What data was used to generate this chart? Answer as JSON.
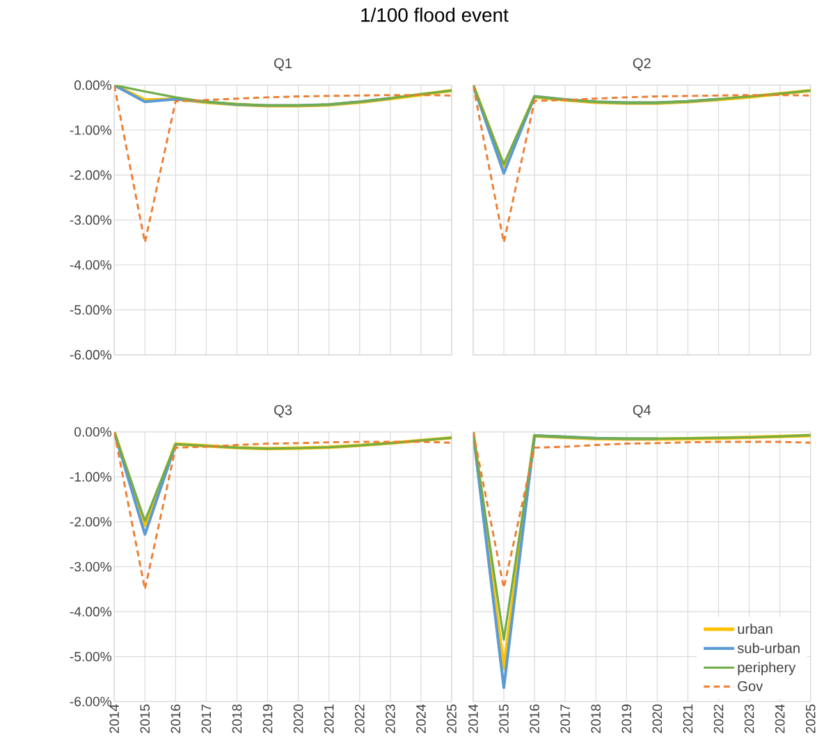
{
  "chart_data": [
    {
      "type": "line",
      "title": "Q1",
      "annotations": [
        "1/100 flood event"
      ],
      "categories": [
        "2014",
        "2015",
        "2016",
        "2017",
        "2018",
        "2019",
        "2020",
        "2021",
        "2022",
        "2023",
        "2024",
        "2025"
      ],
      "ylim": [
        -6,
        0
      ],
      "yticks": [
        {
          "value": 0,
          "label": "0.00%"
        },
        {
          "value": -1,
          "label": "-1.00%"
        },
        {
          "value": -2,
          "label": "-2.00%"
        },
        {
          "value": -3,
          "label": "-3.00%"
        },
        {
          "value": -4,
          "label": "-4.00%"
        },
        {
          "value": -5,
          "label": "-5.00%"
        },
        {
          "value": -6,
          "label": "-6.00%"
        }
      ],
      "grid": true,
      "tick_labels": "y",
      "series": [
        {
          "color": "#ffc000",
          "values": [
            0,
            -0.33,
            -0.31,
            -0.38,
            -0.43,
            -0.46,
            -0.46,
            -0.44,
            -0.38,
            -0.3,
            -0.21,
            -0.12
          ]
        },
        {
          "color": "#5b9bd5",
          "values": [
            0,
            -0.37,
            -0.31,
            -0.37,
            -0.43,
            -0.45,
            -0.45,
            -0.43,
            -0.37,
            -0.29,
            null,
            null
          ]
        },
        {
          "color": "#70ad47",
          "values": [
            0,
            -0.14,
            -0.27,
            -0.37,
            -0.42,
            -0.45,
            -0.45,
            -0.43,
            -0.37,
            -0.29,
            -0.2,
            -0.12
          ]
        },
        {
          "color": "#ed7d31",
          "line_style": "dashed",
          "values": [
            0,
            -3.5,
            -0.36,
            -0.33,
            -0.3,
            -0.27,
            -0.25,
            -0.24,
            -0.23,
            -0.22,
            -0.22,
            -0.23
          ]
        }
      ]
    },
    {
      "type": "line",
      "title": "Q2",
      "categories": [
        "2014",
        "2015",
        "2016",
        "2017",
        "2018",
        "2019",
        "2020",
        "2021",
        "2022",
        "2023",
        "2024",
        "2025"
      ],
      "ylim": [
        -6,
        0
      ],
      "yticks": [
        0,
        -1,
        -2,
        -3,
        -4,
        -5,
        -6
      ],
      "grid": true,
      "tick_labels": false,
      "series": [
        {
          "color": "#ffc000",
          "values": [
            0,
            -1.8,
            -0.26,
            -0.33,
            -0.38,
            -0.4,
            -0.4,
            -0.37,
            -0.32,
            -0.26,
            -0.19,
            -0.12
          ]
        },
        {
          "color": "#5b9bd5",
          "values": [
            0,
            -1.96,
            -0.25,
            -0.32,
            -0.37,
            -0.39,
            -0.39,
            -0.36,
            -0.31,
            null,
            null,
            null
          ]
        },
        {
          "color": "#70ad47",
          "values": [
            0,
            -1.76,
            -0.25,
            -0.32,
            -0.37,
            -0.39,
            -0.39,
            -0.36,
            -0.31,
            -0.25,
            -0.19,
            -0.12
          ]
        },
        {
          "color": "#ed7d31",
          "line_style": "dashed",
          "values": [
            0,
            -3.5,
            -0.35,
            -0.33,
            -0.3,
            -0.27,
            -0.25,
            -0.24,
            -0.23,
            -0.22,
            -0.22,
            -0.23
          ]
        }
      ]
    },
    {
      "type": "line",
      "title": "Q3",
      "categories": [
        "2014",
        "2015",
        "2016",
        "2017",
        "2018",
        "2019",
        "2020",
        "2021",
        "2022",
        "2023",
        "2024",
        "2025"
      ],
      "ylim": [
        -6,
        0
      ],
      "yticks": [
        {
          "value": 0,
          "label": "0.00%"
        },
        {
          "value": -1,
          "label": "-1.00%"
        },
        {
          "value": -2,
          "label": "-2.00%"
        },
        {
          "value": -3,
          "label": "-3.00%"
        },
        {
          "value": -4,
          "label": "-4.00%"
        },
        {
          "value": -5,
          "label": "-5.00%"
        },
        {
          "value": -6,
          "label": "-6.00%"
        }
      ],
      "grid": true,
      "series": [
        {
          "color": "#ffc000",
          "values": [
            0,
            -2.08,
            -0.27,
            -0.31,
            -0.35,
            -0.37,
            -0.36,
            -0.34,
            -0.3,
            -0.25,
            -0.19,
            -0.13
          ]
        },
        {
          "color": "#5b9bd5",
          "values": [
            0,
            -2.28,
            -0.28,
            null,
            null,
            null,
            null,
            null,
            null,
            null,
            null,
            null
          ]
        },
        {
          "color": "#70ad47",
          "values": [
            0,
            -1.98,
            -0.27,
            -0.31,
            -0.35,
            -0.37,
            -0.36,
            -0.34,
            -0.3,
            -0.25,
            -0.19,
            -0.13
          ]
        },
        {
          "color": "#ed7d31",
          "line_style": "dashed",
          "values": [
            0,
            -3.5,
            -0.35,
            -0.33,
            -0.29,
            -0.26,
            -0.25,
            -0.23,
            -0.22,
            -0.22,
            -0.22,
            -0.24
          ]
        }
      ]
    },
    {
      "type": "line",
      "title": "Q4",
      "categories": [
        "2014",
        "2015",
        "2016",
        "2017",
        "2018",
        "2019",
        "2020",
        "2021",
        "2022",
        "2023",
        "2024",
        "2025"
      ],
      "ylim": [
        -6,
        0
      ],
      "yticks": [
        0,
        -1,
        -2,
        -3,
        -4,
        -5,
        -6
      ],
      "grid": true,
      "tick_labels": "x",
      "legend": "bottom right",
      "series": [
        {
          "name": "urban",
          "color": "#ffc000",
          "values": [
            0,
            -5.26,
            -0.09,
            -0.12,
            -0.15,
            -0.16,
            -0.16,
            -0.15,
            -0.14,
            -0.12,
            -0.1,
            -0.08
          ]
        },
        {
          "name": "sub-urban",
          "color": "#5b9bd5",
          "values": [
            0,
            -5.69,
            -0.08,
            -0.11,
            -0.14,
            -0.15,
            -0.15,
            null,
            null,
            null,
            null,
            null
          ]
        },
        {
          "name": "periphery",
          "color": "#70ad47",
          "values": [
            0,
            -4.62,
            -0.08,
            -0.11,
            -0.14,
            -0.15,
            -0.15,
            -0.14,
            -0.13,
            -0.12,
            -0.1,
            -0.07
          ]
        },
        {
          "name": "Gov",
          "color": "#ed7d31",
          "line_style": "dashed",
          "values": [
            0,
            -3.47,
            -0.35,
            -0.33,
            -0.29,
            -0.26,
            -0.25,
            -0.23,
            -0.22,
            -0.22,
            -0.22,
            -0.24
          ]
        }
      ]
    }
  ]
}
